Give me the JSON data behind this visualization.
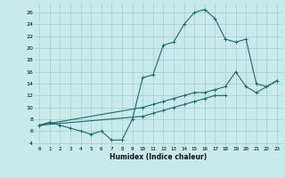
{
  "xlabel": "Humidex (Indice chaleur)",
  "bg_color": "#c8eaea",
  "grid_color": "#a8cccc",
  "line_color": "#1a6b6b",
  "xlim": [
    -0.5,
    23.5
  ],
  "ylim": [
    3.5,
    27.5
  ],
  "yticks": [
    4,
    6,
    8,
    10,
    12,
    14,
    16,
    18,
    20,
    22,
    24,
    26
  ],
  "xticks": [
    0,
    1,
    2,
    3,
    4,
    5,
    6,
    7,
    8,
    9,
    10,
    11,
    12,
    13,
    14,
    15,
    16,
    17,
    18,
    19,
    20,
    21,
    22,
    23
  ],
  "curve1_x": [
    0,
    1,
    2,
    3,
    4,
    5,
    6,
    7,
    8,
    9,
    10,
    11,
    12,
    13,
    14,
    15,
    16,
    17,
    18
  ],
  "curve1_y": [
    7.0,
    7.5,
    7.0,
    6.5,
    6.0,
    5.5,
    6.0,
    4.5,
    4.5,
    8.0,
    15.0,
    15.5,
    20.5,
    21.0,
    24.0,
    26.0,
    26.5,
    25.0,
    21.5
  ],
  "curve2_x": [
    18,
    19,
    20,
    21,
    22,
    23
  ],
  "curve2_y": [
    21.5,
    21.0,
    21.5,
    14.0,
    13.5,
    14.5
  ],
  "line_mid_x": [
    0,
    10,
    11,
    12,
    13,
    14,
    15,
    16,
    17,
    18,
    19,
    20,
    21,
    23
  ],
  "line_mid_y": [
    7.0,
    10.0,
    10.5,
    11.0,
    11.5,
    12.0,
    12.5,
    12.5,
    13.0,
    13.5,
    16.0,
    13.5,
    12.5,
    14.5
  ],
  "line_bot_x": [
    0,
    10,
    11,
    12,
    13,
    14,
    15,
    16,
    17,
    18
  ],
  "line_bot_y": [
    7.0,
    8.5,
    9.0,
    9.5,
    10.0,
    10.5,
    11.0,
    11.5,
    12.0,
    12.0
  ]
}
